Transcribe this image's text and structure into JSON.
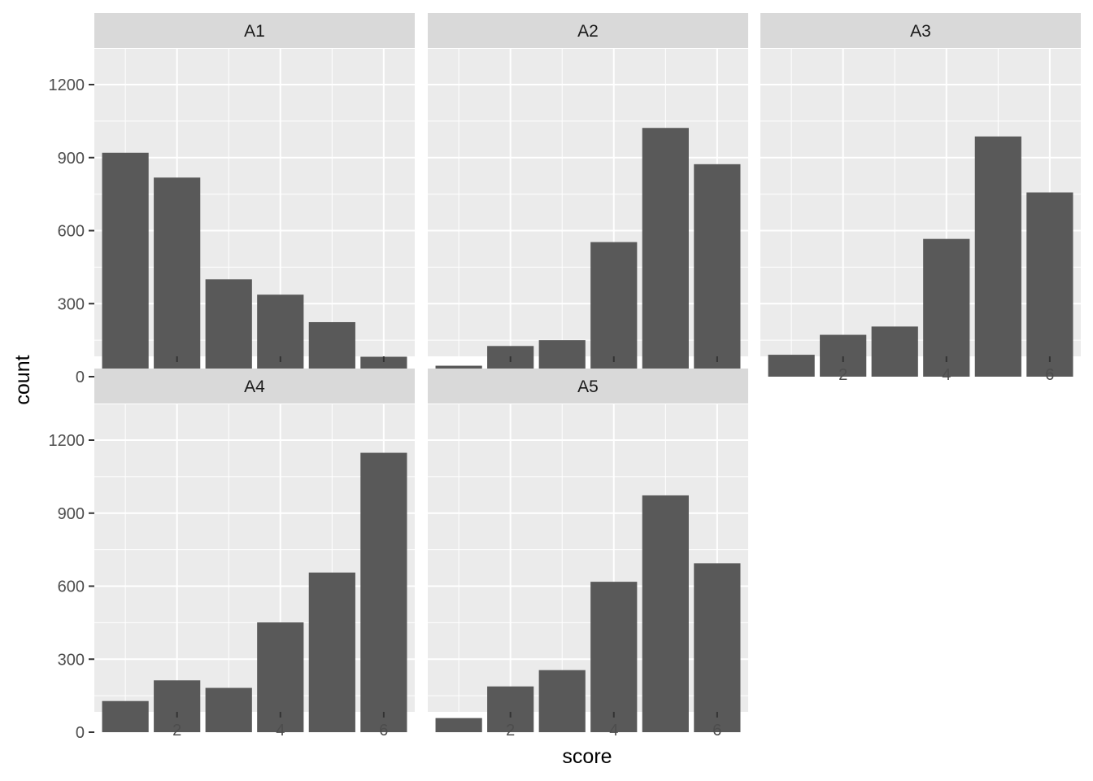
{
  "chart_data": {
    "type": "bar",
    "xlabel": "score",
    "ylabel": "count",
    "x": [
      1,
      2,
      3,
      4,
      5,
      6
    ],
    "xticks": [
      2,
      4,
      6
    ],
    "yticks": [
      0,
      300,
      600,
      900,
      1200
    ],
    "xlim": [
      0.4,
      6.6
    ],
    "ylim": [
      0,
      1200
    ],
    "grid": true,
    "colors": {
      "bar": "#595959",
      "panel_background": "#ebebeb",
      "grid": "#ffffff",
      "strip_background": "#d9d9d9"
    },
    "panels": [
      {
        "label": "A1",
        "values": [
          920,
          818,
          400,
          337,
          224,
          82
        ]
      },
      {
        "label": "A2",
        "values": [
          45,
          126,
          150,
          553,
          1022,
          873
        ]
      },
      {
        "label": "A3",
        "values": [
          90,
          172,
          206,
          566,
          987,
          757
        ]
      },
      {
        "label": "A4",
        "values": [
          128,
          213,
          182,
          451,
          656,
          1148
        ]
      },
      {
        "label": "A5",
        "values": [
          58,
          188,
          255,
          618,
          973,
          694
        ]
      }
    ]
  }
}
